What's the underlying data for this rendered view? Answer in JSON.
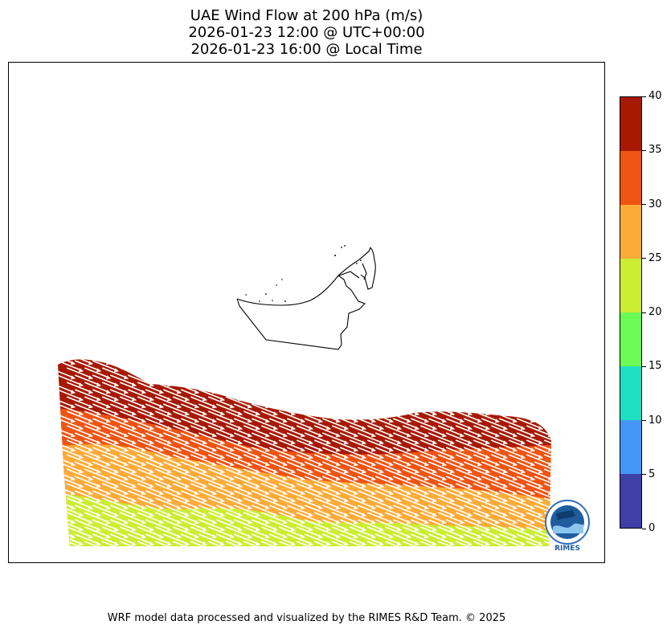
{
  "titles": {
    "line1": "UAE Wind Flow at 200 hPa (m/s)",
    "line2": "2026-01-23 12:00 @ UTC+00:00",
    "line3": "2026-01-23 16:00 @ Local Time"
  },
  "colorbar": {
    "min": 0,
    "max": 40,
    "levels": [
      {
        "from": 0,
        "to": 5,
        "color": "#3f3fa8"
      },
      {
        "from": 5,
        "to": 10,
        "color": "#4597f7"
      },
      {
        "from": 10,
        "to": 15,
        "color": "#1ddfc2"
      },
      {
        "from": 15,
        "to": 20,
        "color": "#6bfd55"
      },
      {
        "from": 20,
        "to": 25,
        "color": "#cbed32"
      },
      {
        "from": 25,
        "to": 30,
        "color": "#fdab38"
      },
      {
        "from": 30,
        "to": 35,
        "color": "#ef5412"
      },
      {
        "from": 35,
        "to": 40,
        "color": "#a71903"
      }
    ],
    "tick_labels": [
      "0",
      "5",
      "10",
      "15",
      "20",
      "25",
      "30",
      "35",
      "40"
    ]
  },
  "logo": {
    "name": "RIMES",
    "ring_text": "Regional Integrated Multi-Hazard Early Warning System"
  },
  "footer": "WRF model data processed and visualized by the RIMES R&D Team. © 2025",
  "wind_direction": "west-northwest to east-southeast"
}
